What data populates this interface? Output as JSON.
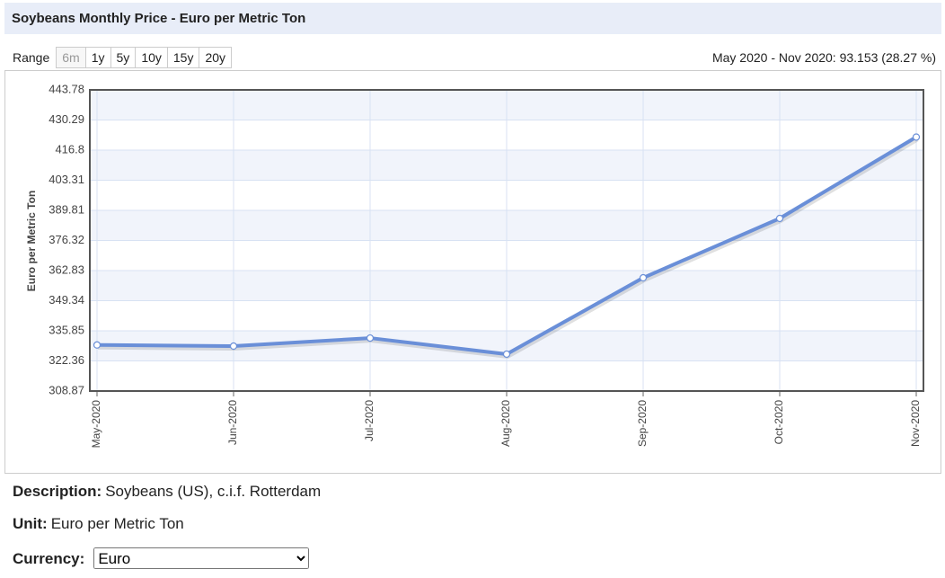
{
  "header": {
    "title": "Soybeans Monthly Price - Euro per Metric Ton"
  },
  "range": {
    "label": "Range",
    "buttons": [
      "6m",
      "1y",
      "5y",
      "10y",
      "15y",
      "20y"
    ]
  },
  "summary": "May 2020 - Nov 2020: 93.153 (28.27 %)",
  "chart_data": {
    "type": "line",
    "ylabel": "Euro per Metric Ton",
    "categories": [
      "May-2020",
      "Jun-2020",
      "Jul-2020",
      "Aug-2020",
      "Sep-2020",
      "Oct-2020",
      "Nov-2020"
    ],
    "values": [
      329.5,
      329.0,
      332.6,
      325.4,
      359.6,
      386.2,
      422.65
    ],
    "color": "#6a8fd8",
    "ylim": [
      308.87,
      443.78
    ],
    "yticks": [
      308.87,
      322.36,
      335.85,
      349.34,
      362.83,
      376.32,
      389.81,
      403.31,
      416.8,
      430.29,
      443.78
    ],
    "grid": true
  },
  "details": {
    "description_label": "Description:",
    "description": "Soybeans (US), c.i.f. Rotterdam",
    "unit_label": "Unit:",
    "unit": "Euro per Metric Ton",
    "currency_label": "Currency:",
    "currency": "Euro"
  }
}
